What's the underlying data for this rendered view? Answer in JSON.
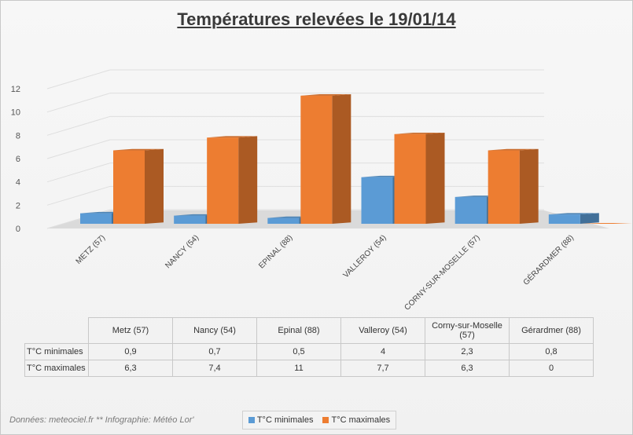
{
  "title": "Températures relevées le 19/01/14",
  "source_note": "Données: meteociel.fr ** Infographie: Météo Lor'",
  "colors": {
    "min": "#5b9bd5",
    "max": "#ed7d31"
  },
  "chart_data": {
    "type": "bar",
    "title": "Températures relevées le 19/01/14",
    "categories": [
      "METZ (57)",
      "NANCY (54)",
      "EPINAL (88)",
      "VALLEROY (54)",
      "CORNY-SUR-MOSELLE (57)",
      "GÉRARDMER (88)"
    ],
    "series": [
      {
        "name": "T°C minimales",
        "values": [
          0.9,
          0.7,
          0.5,
          4,
          2.3,
          0.8
        ]
      },
      {
        "name": "T°C maximales",
        "values": [
          6.3,
          7.4,
          11,
          7.7,
          6.3,
          0
        ]
      }
    ],
    "ylim": [
      0,
      12
    ],
    "yticks": [
      "0",
      "2",
      "4",
      "6",
      "8",
      "10",
      "12"
    ],
    "grid": true,
    "legend_position": "bottom"
  },
  "table": {
    "columns": [
      "Metz (57)",
      "Nancy (54)",
      "Epinal (88)",
      "Valleroy (54)",
      "Corny-sur-Moselle (57)",
      "Gérardmer (88)"
    ],
    "rows": [
      {
        "label": "T°C minimales",
        "values": [
          "0,9",
          "0,7",
          "0,5",
          "4",
          "2,3",
          "0,8"
        ]
      },
      {
        "label": "T°C maximales",
        "values": [
          "6,3",
          "7,4",
          "11",
          "7,7",
          "6,3",
          "0"
        ]
      }
    ]
  },
  "legend": {
    "min_label": "T°C minimales",
    "max_label": "T°C maximales"
  }
}
